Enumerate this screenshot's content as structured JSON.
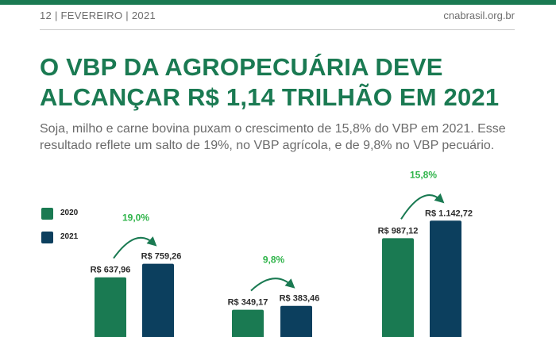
{
  "header": {
    "date": "12 | FEVEREIRO | 2021",
    "site": "cnabrasil.org.br"
  },
  "headline": {
    "line1": "O VBP DA AGROPECUÁRIA DEVE",
    "line2": "ALCANÇAR R$ 1,14 TRILHÃO EM 2021"
  },
  "subtitle": "Soja, milho e carne bovina puxam o  crescimento de 15,8% do VBP em 2021. Esse resultado reflete um salto de 19%, no VBP agrícola, e de 9,8% no VBP pecuário.",
  "colors": {
    "green": "#1a7a52",
    "navy": "#0c3f5e",
    "accent_green": "#2fb44a",
    "text_gray": "#6b6b6b"
  },
  "chart_data": {
    "type": "bar",
    "series": [
      {
        "name": "2020",
        "values": [
          637.96,
          349.17,
          987.12
        ]
      },
      {
        "name": "2021",
        "values": [
          759.26,
          383.46,
          1142.72
        ]
      }
    ],
    "value_labels": [
      [
        "R$ 637,96",
        "R$ 349,17",
        "R$ 987,12"
      ],
      [
        "R$ 759,26",
        "R$ 383,46",
        "R$ 1.142,72"
      ]
    ],
    "growth_labels": [
      "19,0%",
      "9,8%",
      "15,8%"
    ],
    "legend": [
      "2020",
      "2021"
    ],
    "legend_position": "top-left"
  }
}
